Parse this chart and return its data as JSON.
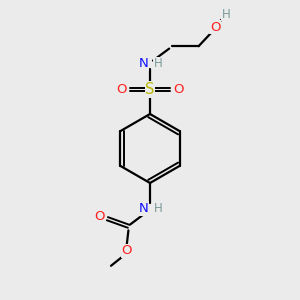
{
  "bg_color": "#ebebeb",
  "atom_colors": {
    "C": "#000000",
    "H": "#7a9a9a",
    "N": "#1010ff",
    "O": "#ff2020",
    "S": "#b8b800"
  },
  "figsize": [
    3.0,
    3.0
  ],
  "dpi": 100
}
